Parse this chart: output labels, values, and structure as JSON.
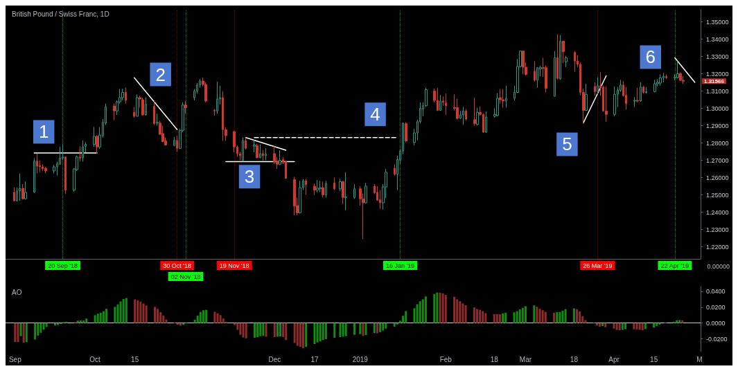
{
  "chart_data": [
    {
      "type": "candlestick",
      "title": "British Pound / Swiss Franc, 1D",
      "x": [
        "2018-09-03",
        "2018-09-04",
        "2018-09-05",
        "2018-09-06",
        "2018-09-07",
        "2018-09-10",
        "2018-09-11",
        "2018-09-12",
        "2018-09-13",
        "2018-09-14",
        "2018-09-17",
        "2018-09-18",
        "2018-09-19",
        "2018-09-20",
        "2018-09-21",
        "2018-09-24",
        "2018-09-25",
        "2018-09-26",
        "2018-09-27",
        "2018-09-28",
        "2018-10-01",
        "2018-10-02",
        "2018-10-03",
        "2018-10-04",
        "2018-10-05",
        "2018-10-08",
        "2018-10-09",
        "2018-10-10",
        "2018-10-11",
        "2018-10-12",
        "2018-10-15",
        "2018-10-16",
        "2018-10-17",
        "2018-10-18",
        "2018-10-19",
        "2018-10-22",
        "2018-10-23",
        "2018-10-24",
        "2018-10-25",
        "2018-10-26",
        "2018-10-29",
        "2018-10-30",
        "2018-10-31",
        "2018-11-01",
        "2018-11-02",
        "2018-11-05",
        "2018-11-06",
        "2018-11-07",
        "2018-11-08",
        "2018-11-09",
        "2018-11-12",
        "2018-11-13",
        "2018-11-14",
        "2018-11-15",
        "2018-11-16",
        "2018-11-19",
        "2018-11-20",
        "2018-11-21",
        "2018-11-22",
        "2018-11-23",
        "2018-11-26",
        "2018-11-27",
        "2018-11-28",
        "2018-11-29",
        "2018-11-30",
        "2018-12-03",
        "2018-12-04",
        "2018-12-05",
        "2018-12-06",
        "2018-12-07",
        "2018-12-10",
        "2018-12-11",
        "2018-12-12",
        "2018-12-13",
        "2018-12-14",
        "2018-12-17",
        "2018-12-18",
        "2018-12-19",
        "2018-12-20",
        "2018-12-21",
        "2018-12-24",
        "2018-12-26",
        "2018-12-27",
        "2018-12-28",
        "2018-12-31",
        "2019-01-02",
        "2019-01-03",
        "2019-01-04",
        "2019-01-07",
        "2019-01-08",
        "2019-01-09",
        "2019-01-10",
        "2019-01-11",
        "2019-01-14",
        "2019-01-15",
        "2019-01-16",
        "2019-01-17",
        "2019-01-18",
        "2019-01-21",
        "2019-01-22",
        "2019-01-23",
        "2019-01-24",
        "2019-01-25",
        "2019-01-28",
        "2019-01-29",
        "2019-01-30",
        "2019-01-31",
        "2019-02-01",
        "2019-02-04",
        "2019-02-05",
        "2019-02-06",
        "2019-02-07",
        "2019-02-08",
        "2019-02-11",
        "2019-02-12",
        "2019-02-13",
        "2019-02-14",
        "2019-02-15",
        "2019-02-18",
        "2019-02-19",
        "2019-02-20",
        "2019-02-21",
        "2019-02-22",
        "2019-02-25",
        "2019-02-26",
        "2019-02-27",
        "2019-02-28",
        "2019-03-01",
        "2019-03-04",
        "2019-03-05",
        "2019-03-06",
        "2019-03-07",
        "2019-03-08",
        "2019-03-11",
        "2019-03-12",
        "2019-03-13",
        "2019-03-14",
        "2019-03-15",
        "2019-03-18",
        "2019-03-19",
        "2019-03-20",
        "2019-03-21",
        "2019-03-22",
        "2019-03-25",
        "2019-03-26",
        "2019-03-27",
        "2019-03-28",
        "2019-03-29",
        "2019-04-01",
        "2019-04-02",
        "2019-04-03",
        "2019-04-04",
        "2019-04-05",
        "2019-04-08",
        "2019-04-09",
        "2019-04-10",
        "2019-04-11",
        "2019-04-12",
        "2019-04-15",
        "2019-04-16",
        "2019-04-17",
        "2019-04-18",
        "2019-04-19",
        "2019-04-22",
        "2019-04-23",
        "2019-04-24",
        "2019-04-25"
      ],
      "ohlc": [
        [
          1.2515,
          1.2542,
          1.2465,
          1.2465
        ],
        [
          1.2465,
          1.2542,
          1.2462,
          1.2523
        ],
        [
          1.2523,
          1.2623,
          1.2465,
          1.2538
        ],
        [
          1.2538,
          1.2562,
          1.2473,
          1.2477
        ],
        [
          1.2477,
          1.2577,
          1.2473,
          1.2515
        ],
        [
          1.2515,
          1.2712,
          1.2512,
          1.2696
        ],
        [
          1.2696,
          1.2738,
          1.2623,
          1.2665
        ],
        [
          1.2669,
          1.27,
          1.2631,
          1.2662
        ],
        [
          1.2662,
          1.2677,
          1.2638,
          1.265
        ],
        [
          1.2654,
          1.2662,
          1.2623,
          1.2638
        ],
        [
          1.2638,
          1.2673,
          1.2623,
          1.2662
        ],
        [
          1.2662,
          1.2692,
          1.2612,
          1.2681
        ],
        [
          1.2677,
          1.2777,
          1.2677,
          1.2712
        ],
        [
          1.2712,
          1.2792,
          1.27,
          1.2719
        ],
        [
          1.2719,
          1.2719,
          1.2504,
          1.2527
        ],
        [
          1.2527,
          1.2654,
          1.2519,
          1.265
        ],
        [
          1.2646,
          1.2727,
          1.2638,
          1.2719
        ],
        [
          1.2719,
          1.2781,
          1.2692,
          1.2712
        ],
        [
          1.2715,
          1.2815,
          1.2692,
          1.2777
        ],
        [
          1.2781,
          1.2804,
          1.2746,
          1.2792
        ],
        [
          1.2792,
          1.2892,
          1.2777,
          1.2838
        ],
        [
          1.2838,
          1.2846,
          1.2738,
          1.2777
        ],
        [
          1.2777,
          1.2892,
          1.2765,
          1.2846
        ],
        [
          1.2842,
          1.2938,
          1.2831,
          1.2919
        ],
        [
          1.2915,
          1.3027,
          1.2904,
          1.3008
        ],
        [
          1.3012,
          1.3027,
          1.2931,
          1.2985
        ],
        [
          1.2985,
          1.3046,
          1.2962,
          1.3038
        ],
        [
          1.3038,
          1.3112,
          1.3027,
          1.3062
        ],
        [
          1.3062,
          1.3112,
          1.3046,
          1.3092
        ],
        [
          1.3092,
          1.3119,
          1.3027,
          1.3046
        ],
        [
          1.2977,
          1.3008,
          1.2946,
          1.2954
        ],
        [
          1.2954,
          1.3081,
          1.2954,
          1.3062
        ],
        [
          1.3062,
          1.3073,
          1.3004,
          1.3054
        ],
        [
          1.305,
          1.3062,
          1.2958,
          1.2962
        ],
        [
          1.2962,
          1.3062,
          1.2958,
          1.3023
        ],
        [
          1.3012,
          1.3046,
          1.2904,
          1.2912
        ],
        [
          1.2915,
          1.2969,
          1.29,
          1.2919
        ],
        [
          1.2915,
          1.2927,
          1.2846,
          1.285
        ],
        [
          1.2854,
          1.29,
          1.2804,
          1.2808
        ],
        [
          1.2812,
          1.2831,
          1.2785,
          1.2788
        ],
        [
          1.2785,
          1.2835,
          1.2781,
          1.2815
        ],
        [
          1.2815,
          1.2842,
          1.275,
          1.2769
        ],
        [
          1.2769,
          1.2881,
          1.2765,
          1.2873
        ],
        [
          1.2873,
          1.3035,
          1.2862,
          1.3019
        ],
        [
          1.3019,
          1.3042,
          1.2969,
          1.3004
        ],
        [
          1.3062,
          1.3112,
          1.3046,
          1.31
        ],
        [
          1.31,
          1.3146,
          1.3085,
          1.3135
        ],
        [
          1.3135,
          1.3169,
          1.3119,
          1.3158
        ],
        [
          1.3158,
          1.3177,
          1.3127,
          1.3138
        ],
        [
          1.3138,
          1.315,
          1.3035,
          1.3042
        ],
        [
          1.2989,
          1.2996,
          1.2958,
          1.2985
        ],
        [
          1.2985,
          1.3154,
          1.2969,
          1.3054
        ],
        [
          1.3054,
          1.3131,
          1.3023,
          1.3062
        ],
        [
          1.3062,
          1.31,
          1.2812,
          1.2877
        ],
        [
          1.2877,
          1.289,
          1.2812,
          1.2842
        ],
        [
          1.2865,
          1.2869,
          1.2746,
          1.2777
        ],
        [
          1.2777,
          1.2785,
          1.2719,
          1.2738
        ],
        [
          1.2738,
          1.275,
          1.27,
          1.2727
        ],
        [
          1.27,
          1.2831,
          1.2696,
          1.2812
        ],
        [
          1.2812,
          1.2831,
          1.2762,
          1.2769
        ],
        [
          1.2781,
          1.2819,
          1.2746,
          1.2788
        ],
        [
          1.2785,
          1.2796,
          1.2712,
          1.2715
        ],
        [
          1.2715,
          1.2792,
          1.2712,
          1.2738
        ],
        [
          1.2738,
          1.2758,
          1.2696,
          1.2727
        ],
        [
          1.2727,
          1.2769,
          1.27,
          1.2735
        ],
        [
          1.2738,
          1.2785,
          1.2677,
          1.2692
        ],
        [
          1.2692,
          1.2719,
          1.265,
          1.2677
        ],
        [
          1.2677,
          1.2758,
          1.2673,
          1.27
        ],
        [
          1.2704,
          1.2719,
          1.2677,
          1.2688
        ],
        [
          1.2692,
          1.2696,
          1.2592,
          1.2596
        ],
        [
          1.2588,
          1.2604,
          1.2381,
          1.2435
        ],
        [
          1.2438,
          1.2485,
          1.2381,
          1.2396
        ],
        [
          1.2396,
          1.2581,
          1.2392,
          1.2542
        ],
        [
          1.2542,
          1.2592,
          1.2527,
          1.2581
        ],
        [
          1.2581,
          1.2592,
          1.25,
          1.2558
        ],
        [
          1.255,
          1.2565,
          1.25,
          1.2527
        ],
        [
          1.2527,
          1.2585,
          1.2515,
          1.2538
        ],
        [
          1.2535,
          1.2581,
          1.2515,
          1.2542
        ],
        [
          1.2542,
          1.2577,
          1.2485,
          1.25
        ],
        [
          1.25,
          1.2581,
          1.2485,
          1.2565
        ],
        [
          1.2569,
          1.26,
          1.2527,
          1.2535
        ],
        [
          1.2535,
          1.2592,
          1.2523,
          1.2577
        ],
        [
          1.2577,
          1.2581,
          1.2446,
          1.2485
        ],
        [
          1.2485,
          1.2631,
          1.2412,
          1.2488
        ],
        [
          1.2485,
          1.2562,
          1.2477,
          1.2535
        ],
        [
          1.2535,
          1.255,
          1.2438,
          1.2477
        ],
        [
          1.2477,
          1.2508,
          1.2246,
          1.2454
        ],
        [
          1.2454,
          1.2569,
          1.245,
          1.255
        ],
        [
          1.255,
          1.2562,
          1.2504,
          1.2512
        ],
        [
          1.2515,
          1.255,
          1.2465,
          1.2469
        ],
        [
          1.2473,
          1.2527,
          1.2419,
          1.2454
        ],
        [
          1.2454,
          1.2562,
          1.2415,
          1.2546
        ],
        [
          1.2546,
          1.265,
          1.2481,
          1.2631
        ],
        [
          1.2654,
          1.2677,
          1.2612,
          1.2619
        ],
        [
          1.2619,
          1.2727,
          1.2527,
          1.2704
        ],
        [
          1.27,
          1.2765,
          1.2677,
          1.2754
        ],
        [
          1.2754,
          1.2919,
          1.2735,
          1.2912
        ],
        [
          1.2912,
          1.2919,
          1.2804,
          1.2812
        ],
        [
          1.2804,
          1.2881,
          1.2785,
          1.2858
        ],
        [
          1.2858,
          1.2935,
          1.2815,
          1.2923
        ],
        [
          1.2923,
          1.3035,
          1.2912,
          1.3
        ],
        [
          1.2996,
          1.3035,
          1.2954,
          1.3015
        ],
        [
          1.3015,
          1.3119,
          1.3008,
          1.3108
        ],
        [
          1.31,
          1.3115,
          1.3035,
          1.3046
        ],
        [
          1.3046,
          1.3119,
          1.2985,
          1.2988
        ],
        [
          1.2988,
          1.3077,
          1.2985,
          1.3042
        ],
        [
          1.3042,
          1.3069,
          1.3015,
          1.3035
        ],
        [
          1.3031,
          1.3085,
          1.2962,
          1.3015
        ],
        [
          1.3004,
          1.3081,
          1.2988,
          1.3
        ],
        [
          1.3004,
          1.3054,
          1.2935,
          1.2942
        ],
        [
          1.2942,
          1.2985,
          1.2938,
          1.2962
        ],
        [
          1.2962,
          1.3008,
          1.2904,
          1.2985
        ],
        [
          1.2985,
          1.2996,
          1.2931,
          1.2938
        ],
        [
          1.2935,
          1.3062,
          1.29,
          1.2912
        ],
        [
          1.2908,
          1.3004,
          1.29,
          1.2977
        ],
        [
          1.2977,
          1.3012,
          1.2958,
          1.2965
        ],
        [
          1.2965,
          1.2969,
          1.2858,
          1.2862
        ],
        [
          1.2862,
          1.2981,
          1.2858,
          1.295
        ],
        [
          1.2954,
          1.3,
          1.2946,
          1.2965
        ],
        [
          1.2958,
          1.3088,
          1.2954,
          1.3058
        ],
        [
          1.3062,
          1.3112,
          1.3027,
          1.305
        ],
        [
          1.305,
          1.3112,
          1.3004,
          1.3042
        ],
        [
          1.3042,
          1.3131,
          1.3004,
          1.3058
        ],
        [
          1.3058,
          1.3131,
          1.3046,
          1.3092
        ],
        [
          1.3092,
          1.3285,
          1.3088,
          1.3242
        ],
        [
          1.3242,
          1.3331,
          1.3235,
          1.3331
        ],
        [
          1.3331,
          1.3331,
          1.3196,
          1.3238
        ],
        [
          1.3238,
          1.3265,
          1.3188,
          1.3196
        ],
        [
          1.3215,
          1.3273,
          1.3154,
          1.3162
        ],
        [
          1.3162,
          1.3238,
          1.3119,
          1.3235
        ],
        [
          1.3227,
          1.3246,
          1.3185,
          1.3235
        ],
        [
          1.3235,
          1.3292,
          1.3181,
          1.3231
        ],
        [
          1.3235,
          1.3246,
          1.3092,
          1.3115
        ],
        [
          1.3069,
          1.3331,
          1.3069,
          1.3292
        ],
        [
          1.3292,
          1.3427,
          1.3165,
          1.3173
        ],
        [
          1.317,
          1.3423,
          1.3165,
          1.3388
        ],
        [
          1.3388,
          1.3388,
          1.3262,
          1.3327
        ],
        [
          1.3269,
          1.3304,
          1.3238,
          1.3292
        ],
        [
          1.3323,
          1.3331,
          1.3212,
          1.3273
        ],
        [
          1.3273,
          1.3308,
          1.3238,
          1.3254
        ],
        [
          1.3254,
          1.3265,
          1.3077,
          1.3092
        ],
        [
          1.3092,
          1.3115,
          1.2912,
          1.2988
        ],
        [
          1.2988,
          1.3142,
          1.2985,
          1.3081
        ],
        [
          1.3127,
          1.315,
          1.3073,
          1.3096
        ],
        [
          1.3096,
          1.3181,
          1.3077,
          1.3131
        ],
        [
          1.3131,
          1.3208,
          1.3073,
          1.3119
        ],
        [
          1.3123,
          1.3131,
          1.2981,
          1.2985
        ],
        [
          1.2985,
          1.3127,
          1.2923,
          1.2965
        ],
        [
          1.2965,
          1.3127,
          1.2954,
          1.3081
        ],
        [
          1.3081,
          1.3123,
          1.3008,
          1.3104
        ],
        [
          1.3104,
          1.3165,
          1.3096,
          1.3135
        ],
        [
          1.3135,
          1.3158,
          1.3069,
          1.3073
        ],
        [
          1.3077,
          1.3123,
          1.2992,
          1.3027
        ],
        [
          1.3042,
          1.3065,
          1.3008,
          1.3046
        ],
        [
          1.3046,
          1.3119,
          1.3035,
          1.3042
        ],
        [
          1.3042,
          1.315,
          1.3038,
          1.3123
        ],
        [
          1.3123,
          1.3131,
          1.3085,
          1.3092
        ],
        [
          1.3092,
          1.3123,
          1.3085,
          1.3096
        ],
        [
          1.3096,
          1.3165,
          1.3092,
          1.3142
        ],
        [
          1.3142,
          1.3169,
          1.3127,
          1.315
        ],
        [
          1.3146,
          1.3196,
          1.3131,
          1.3177
        ],
        [
          1.3177,
          1.3204,
          1.315,
          1.3185
        ],
        [
          1.3185,
          1.3196,
          1.3169,
          1.3177
        ],
        [
          1.3177,
          1.3196,
          1.3162,
          1.3181
        ],
        [
          1.3177,
          1.3273,
          1.3173,
          1.32
        ],
        [
          1.32,
          1.3208,
          1.3158,
          1.3162
        ],
        [
          1.3162,
          1.3185,
          1.3142,
          1.31566
        ]
      ],
      "series": [
        {
          "type": "line",
          "color": "#ffffff",
          "x": [
            "2018-09-10",
            "2018-10-02"
          ],
          "values": [
            1.2742,
            1.2742
          ]
        },
        {
          "type": "line",
          "color": "#ffffff",
          "x": [
            "2018-10-15",
            "2018-10-30"
          ],
          "values": [
            1.3177,
            1.2877
          ]
        },
        {
          "type": "line",
          "color": "#ffffff",
          "x": [
            "2018-11-16",
            "2018-12-10"
          ],
          "values": [
            1.2692,
            1.2692
          ]
        },
        {
          "type": "line",
          "color": "#ffffff",
          "x": [
            "2018-11-23",
            "2018-12-07"
          ],
          "values": [
            1.2831,
            1.2758
          ]
        },
        {
          "type": "line",
          "color": "#ffffff",
          "x": [
            "2018-11-26",
            "2019-01-15"
          ],
          "values": [
            1.2831,
            1.2831
          ],
          "line_style": "dashed"
        },
        {
          "type": "line",
          "color": "#ffffff",
          "x": [
            "2019-03-21",
            "2019-03-29"
          ],
          "values": [
            1.2915,
            1.3188
          ]
        },
        {
          "type": "line",
          "color": "#ffffff",
          "x": [
            "2019-04-22",
            "2019-04-29"
          ],
          "values": [
            1.3292,
            1.315
          ]
        }
      ],
      "xlim": [
        "2018-08-31",
        "2019-05-01"
      ],
      "ylim": [
        1.213,
        1.357
      ],
      "yticks": [
        {
          "value": 1.22,
          "label": "1.22000"
        },
        {
          "value": 1.23,
          "label": "1.23000"
        },
        {
          "value": 1.24,
          "label": "1.24000"
        },
        {
          "value": 1.25,
          "label": "1.25000"
        },
        {
          "value": 1.26,
          "label": "1.26000"
        },
        {
          "value": 1.27,
          "label": "1.27000"
        },
        {
          "value": 1.28,
          "label": "1.28000"
        },
        {
          "value": 1.29,
          "label": "1.29000"
        },
        {
          "value": 1.3,
          "label": "1.30000"
        },
        {
          "value": 1.31,
          "label": "1.31000"
        },
        {
          "value": 1.32,
          "label": "1.32000"
        },
        {
          "value": 1.33,
          "label": "1.33000"
        },
        {
          "value": 1.34,
          "label": "1.34000"
        },
        {
          "value": 1.35,
          "label": "1.35000"
        }
      ],
      "tick_labels": "y",
      "ref_lines": [
        {
          "axis": "x",
          "value": "2018-09-20",
          "label": "20 Sep '18",
          "color": "#00ff00",
          "line_style": "dotted"
        },
        {
          "axis": "x",
          "value": "2018-10-30",
          "label": "30 Oct '18",
          "color": "#ff0000",
          "line_style": "dotted"
        },
        {
          "axis": "x",
          "value": "2018-11-02",
          "label": "02 Nov '18",
          "color": "#00ff00",
          "line_style": "dotted"
        },
        {
          "axis": "x",
          "value": "2018-11-19",
          "label": "19 Nov '18",
          "color": "#ff0000",
          "line_style": "dotted"
        },
        {
          "axis": "x",
          "value": "2019-01-16",
          "label": "16 Jan '19",
          "color": "#00ff00",
          "line_style": "dotted"
        },
        {
          "axis": "x",
          "value": "2019-03-26",
          "label": "26 Mar '19",
          "color": "#ff0000",
          "line_style": "dotted"
        },
        {
          "axis": "x",
          "value": "2019-04-22",
          "label": "22 Apr '19",
          "color": "#00ff00",
          "line_style": "dotted"
        }
      ],
      "annotations": [
        "1",
        "2",
        "3",
        "4",
        "5",
        "6",
        "1.31566",
        "0.00000"
      ]
    },
    {
      "type": "bar",
      "title": "AO",
      "x": [
        "2018-09-03",
        "2018-09-04",
        "2018-09-05",
        "2018-09-06",
        "2018-09-07",
        "2018-09-10",
        "2018-09-11",
        "2018-09-12",
        "2018-09-13",
        "2018-09-14",
        "2018-09-17",
        "2018-09-18",
        "2018-09-19",
        "2018-09-20",
        "2018-09-21",
        "2018-09-24",
        "2018-09-25",
        "2018-09-26",
        "2018-09-27",
        "2018-09-28",
        "2018-10-01",
        "2018-10-02",
        "2018-10-03",
        "2018-10-04",
        "2018-10-05",
        "2018-10-08",
        "2018-10-09",
        "2018-10-10",
        "2018-10-11",
        "2018-10-12",
        "2018-10-15",
        "2018-10-16",
        "2018-10-17",
        "2018-10-18",
        "2018-10-19",
        "2018-10-22",
        "2018-10-23",
        "2018-10-24",
        "2018-10-25",
        "2018-10-26",
        "2018-10-29",
        "2018-10-30",
        "2018-10-31",
        "2018-11-01",
        "2018-11-02",
        "2018-11-05",
        "2018-11-06",
        "2018-11-07",
        "2018-11-08",
        "2018-11-09",
        "2018-11-12",
        "2018-11-13",
        "2018-11-14",
        "2018-11-15",
        "2018-11-16",
        "2018-11-19",
        "2018-11-20",
        "2018-11-21",
        "2018-11-22",
        "2018-11-23",
        "2018-11-26",
        "2018-11-27",
        "2018-11-28",
        "2018-11-29",
        "2018-11-30",
        "2018-12-03",
        "2018-12-04",
        "2018-12-05",
        "2018-12-06",
        "2018-12-07",
        "2018-12-10",
        "2018-12-11",
        "2018-12-12",
        "2018-12-13",
        "2018-12-14",
        "2018-12-17",
        "2018-12-18",
        "2018-12-19",
        "2018-12-20",
        "2018-12-21",
        "2018-12-24",
        "2018-12-26",
        "2018-12-27",
        "2018-12-28",
        "2018-12-31",
        "2019-01-02",
        "2019-01-03",
        "2019-01-04",
        "2019-01-07",
        "2019-01-08",
        "2019-01-09",
        "2019-01-10",
        "2019-01-11",
        "2019-01-14",
        "2019-01-15",
        "2019-01-16",
        "2019-01-17",
        "2019-01-18",
        "2019-01-21",
        "2019-01-22",
        "2019-01-23",
        "2019-01-24",
        "2019-01-25",
        "2019-01-28",
        "2019-01-29",
        "2019-01-30",
        "2019-01-31",
        "2019-02-01",
        "2019-02-04",
        "2019-02-05",
        "2019-02-06",
        "2019-02-07",
        "2019-02-08",
        "2019-02-11",
        "2019-02-12",
        "2019-02-13",
        "2019-02-14",
        "2019-02-15",
        "2019-02-18",
        "2019-02-19",
        "2019-02-20",
        "2019-02-21",
        "2019-02-22",
        "2019-02-25",
        "2019-02-26",
        "2019-02-27",
        "2019-02-28",
        "2019-03-01",
        "2019-03-04",
        "2019-03-05",
        "2019-03-06",
        "2019-03-07",
        "2019-03-08",
        "2019-03-11",
        "2019-03-12",
        "2019-03-13",
        "2019-03-14",
        "2019-03-15",
        "2019-03-18",
        "2019-03-19",
        "2019-03-20",
        "2019-03-21",
        "2019-03-22",
        "2019-03-25",
        "2019-03-26",
        "2019-03-27",
        "2019-03-28",
        "2019-03-29",
        "2019-04-01",
        "2019-04-02",
        "2019-04-03",
        "2019-04-04",
        "2019-04-05",
        "2019-04-08",
        "2019-04-09",
        "2019-04-10",
        "2019-04-11",
        "2019-04-12",
        "2019-04-15",
        "2019-04-16",
        "2019-04-17",
        "2019-04-18",
        "2019-04-19",
        "2019-04-22",
        "2019-04-23",
        "2019-04-24",
        "2019-04-25"
      ],
      "values": [
        -0.0239,
        -0.0239,
        -0.0165,
        -0.0246,
        -0.0239,
        -0.0207,
        -0.0158,
        -0.0123,
        -0.0084,
        -0.0049,
        -0.003,
        -0.0025,
        -0.001,
        0.0012,
        0.0017,
        0.0012,
        0.003,
        0.0032,
        0.0034,
        0.0057,
        0.0099,
        0.0118,
        0.0131,
        0.0148,
        0.018,
        0.0204,
        0.0236,
        0.0273,
        0.0303,
        0.0315,
        0.0298,
        0.0286,
        0.0271,
        0.0246,
        0.0222,
        0.0204,
        0.0177,
        0.0138,
        0.0094,
        0.0044,
        0.0007,
        -0.0022,
        -0.0034,
        -0.0025,
        0.0005,
        0.0042,
        0.0094,
        0.014,
        0.0162,
        0.0167,
        0.0143,
        0.0123,
        0.0099,
        0.0057,
        0.0015,
        -0.0025,
        -0.0086,
        -0.0148,
        -0.0182,
        -0.0192,
        -0.0185,
        -0.0177,
        -0.0165,
        -0.0163,
        -0.0172,
        -0.0177,
        -0.0172,
        -0.017,
        -0.0177,
        -0.0214,
        -0.0251,
        -0.0288,
        -0.03,
        -0.0318,
        -0.03,
        -0.0264,
        -0.0244,
        -0.0232,
        -0.0214,
        -0.0202,
        -0.0185,
        -0.0177,
        -0.0172,
        -0.0165,
        -0.0148,
        -0.014,
        -0.0162,
        -0.0152,
        -0.0127,
        -0.013,
        -0.0115,
        -0.0095,
        -0.007,
        -0.0045,
        -0.0017,
        0.003,
        0.0092,
        0.015,
        0.0187,
        0.0237,
        0.0275,
        0.03,
        0.0335,
        0.0367,
        0.0385,
        0.0382,
        0.0375,
        0.0355,
        0.033,
        0.03,
        0.0275,
        0.0247,
        0.0225,
        0.0197,
        0.0177,
        0.0167,
        0.015,
        0.0125,
        0.0112,
        0.0111,
        0.011,
        0.0122,
        0.013,
        0.0135,
        0.015,
        0.0172,
        0.0192,
        0.0212,
        0.0222,
        0.0205,
        0.018,
        0.0162,
        0.0142,
        0.013,
        0.0137,
        0.014,
        0.0155,
        0.0175,
        0.0185,
        0.0175,
        0.0147,
        0.0087,
        0.0037,
        0.0005,
        -0.0032,
        -0.0045,
        -0.0037,
        -0.0052,
        -0.007,
        -0.0087,
        -0.009,
        -0.0087,
        -0.0077,
        -0.0078,
        -0.008,
        -0.0085,
        -0.009,
        -0.0077,
        -0.0057,
        -0.0037,
        -0.002,
        null,
        0.0007,
        0.0017,
        0.0035,
        0.0037,
        0.0035
      ],
      "colors": [
        "#8e2c2c",
        "#8e2c2c",
        "#118c11",
        "#8e2c2c",
        "#118c11",
        "#118c11",
        "#118c11",
        "#118c11",
        "#118c11",
        "#118c11",
        "#118c11",
        "#118c11",
        "#118c11",
        "#118c11",
        "#118c11",
        "#8e2c2c",
        "#118c11",
        "#118c11",
        "#118c11",
        "#118c11",
        "#118c11",
        "#118c11",
        "#118c11",
        "#118c11",
        "#118c11",
        "#118c11",
        "#118c11",
        "#118c11",
        "#118c11",
        "#118c11",
        "#8e2c2c",
        "#8e2c2c",
        "#8e2c2c",
        "#8e2c2c",
        "#8e2c2c",
        "#8e2c2c",
        "#8e2c2c",
        "#8e2c2c",
        "#8e2c2c",
        "#8e2c2c",
        "#8e2c2c",
        "#8e2c2c",
        "#8e2c2c",
        "#118c11",
        "#118c11",
        "#118c11",
        "#118c11",
        "#118c11",
        "#118c11",
        "#118c11",
        "#8e2c2c",
        "#8e2c2c",
        "#8e2c2c",
        "#8e2c2c",
        "#8e2c2c",
        "#8e2c2c",
        "#8e2c2c",
        "#8e2c2c",
        "#8e2c2c",
        "#8e2c2c",
        "#118c11",
        "#118c11",
        "#118c11",
        "#118c11",
        "#8e2c2c",
        "#8e2c2c",
        "#118c11",
        "#118c11",
        "#8e2c2c",
        "#8e2c2c",
        "#8e2c2c",
        "#8e2c2c",
        "#8e2c2c",
        "#8e2c2c",
        "#118c11",
        "#118c11",
        "#118c11",
        "#118c11",
        "#118c11",
        "#118c11",
        "#118c11",
        "#118c11",
        "#118c11",
        "#118c11",
        "#118c11",
        "#118c11",
        "#8e2c2c",
        "#118c11",
        "#118c11",
        "#8e2c2c",
        "#118c11",
        "#118c11",
        "#118c11",
        "#118c11",
        "#118c11",
        "#118c11",
        "#118c11",
        "#118c11",
        "#118c11",
        "#118c11",
        "#118c11",
        "#118c11",
        "#118c11",
        "#118c11",
        "#118c11",
        "#8e2c2c",
        "#8e2c2c",
        "#8e2c2c",
        "#8e2c2c",
        "#8e2c2c",
        "#8e2c2c",
        "#8e2c2c",
        "#8e2c2c",
        "#8e2c2c",
        "#8e2c2c",
        "#8e2c2c",
        "#8e2c2c",
        "#8e2c2c",
        "#8e2c2c",
        "#8e2c2c",
        "#8e2c2c",
        "#118c11",
        "#118c11",
        "#118c11",
        "#118c11",
        "#118c11",
        "#118c11",
        "#118c11",
        "#118c11",
        "#8e2c2c",
        "#8e2c2c",
        "#8e2c2c",
        "#8e2c2c",
        "#8e2c2c",
        "#118c11",
        "#118c11",
        "#118c11",
        "#118c11",
        "#118c11",
        "#8e2c2c",
        "#8e2c2c",
        "#8e2c2c",
        "#8e2c2c",
        "#8e2c2c",
        "#8e2c2c",
        "#8e2c2c",
        "#118c11",
        "#8e2c2c",
        "#8e2c2c",
        "#8e2c2c",
        "#8e2c2c",
        "#118c11",
        "#118c11",
        "#8e2c2c",
        "#8e2c2c",
        "#8e2c2c",
        "#8e2c2c",
        "#118c11",
        "#118c11",
        "#118c11",
        "#118c11",
        "#118c11",
        "#118c11",
        "#118c11",
        "#118c11",
        "#118c11",
        "#8e2c2c"
      ],
      "xlim": [
        "2018-08-31",
        "2019-05-01"
      ],
      "xticks": [
        {
          "value": "2018-09-03",
          "label": "Sep"
        },
        {
          "value": "2018-10-01",
          "label": "Oct"
        },
        {
          "value": "2018-10-15",
          "label": "15"
        },
        {
          "value": "2018-12-03",
          "label": "Dec"
        },
        {
          "value": "2018-12-17",
          "label": "17"
        },
        {
          "value": "2019-01-02",
          "label": "2019"
        },
        {
          "value": "2019-02-01",
          "label": "Feb"
        },
        {
          "value": "2019-02-18",
          "label": "18"
        },
        {
          "value": "2019-03-01",
          "label": "Mar"
        },
        {
          "value": "2019-03-18",
          "label": "18"
        },
        {
          "value": "2019-04-01",
          "label": "Apr"
        },
        {
          "value": "2019-04-15",
          "label": "15"
        },
        {
          "value": "2019-05-01",
          "label": "M"
        }
      ],
      "ylim": [
        -0.036,
        0.046
      ],
      "yticks": [
        {
          "value": -0.02,
          "label": "-0.0200"
        },
        {
          "value": 0,
          "label": "0.0000"
        },
        {
          "value": 0.02,
          "label": "0.0200"
        },
        {
          "value": 0.04,
          "label": "0.0400"
        }
      ],
      "ref_lines": [
        {
          "axis": "y",
          "value": 0,
          "color": "#c8c8c8"
        }
      ]
    }
  ]
}
